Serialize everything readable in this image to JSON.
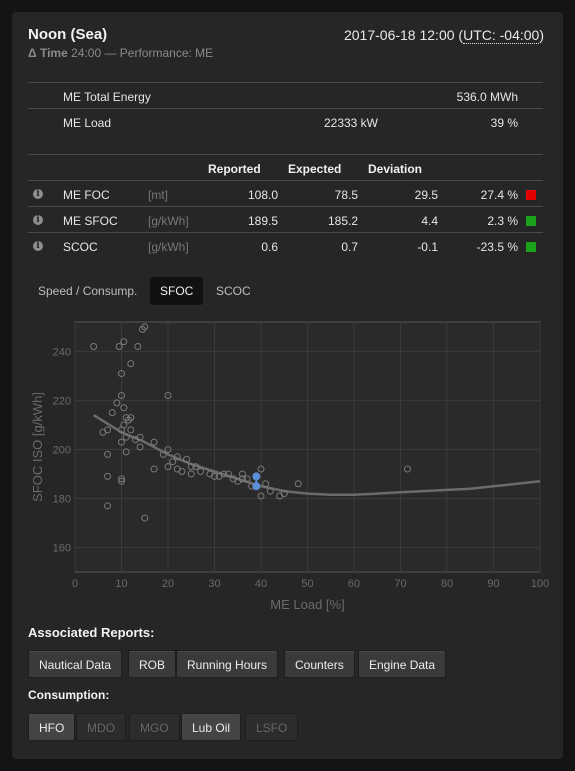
{
  "header": {
    "title": "Noon (Sea)",
    "datetime_prefix": "2017-06-18 12:00 (",
    "datetime_tz": "UTC: -04:00",
    "datetime_suffix": ")",
    "delta_label": "Δ Time",
    "delta_value": "24:00 — Performance: ME"
  },
  "summary": [
    {
      "label": "ME Total Energy",
      "mid": "",
      "value": "536.0 MWh"
    },
    {
      "label": "ME Load",
      "mid": "22333 kW",
      "value": "39 %"
    }
  ],
  "perf_table": {
    "headers": [
      "Reported",
      "Expected",
      "Deviation"
    ],
    "rows": [
      {
        "label": "ME FOC",
        "unit": "[mt]",
        "reported": "108.0",
        "expected": "78.5",
        "deviation": "29.5",
        "pct": "27.4 %",
        "status_color": "#e00000"
      },
      {
        "label": "ME SFOC",
        "unit": "[g/kWh]",
        "reported": "189.5",
        "expected": "185.2",
        "deviation": "4.4",
        "pct": "2.3 %",
        "status_color": "#1aa31a"
      },
      {
        "label": "SCOC",
        "unit": "[g/kWh]",
        "reported": "0.6",
        "expected": "0.7",
        "deviation": "-0.1",
        "pct": "-23.5 %",
        "status_color": "#1aa31a"
      }
    ]
  },
  "tabs": {
    "items": [
      "Speed / Consump.",
      "SFOC",
      "SCOC"
    ],
    "active_index": 1
  },
  "chart_data": {
    "type": "scatter",
    "title": "",
    "xlabel": "ME Load [%]",
    "ylabel": "SFOC ISO [g/kWh]",
    "xlim": [
      0,
      100
    ],
    "ylim": [
      150,
      252
    ],
    "xticks": [
      0,
      10,
      20,
      30,
      40,
      50,
      60,
      70,
      80,
      90,
      100
    ],
    "yticks": [
      160,
      180,
      200,
      220,
      240
    ],
    "grid": true,
    "points": [
      [
        4,
        242
      ],
      [
        9.5,
        242
      ],
      [
        10.5,
        244
      ],
      [
        13.5,
        242
      ],
      [
        14.5,
        249
      ],
      [
        15,
        250
      ],
      [
        12,
        235
      ],
      [
        10,
        231
      ],
      [
        20,
        222
      ],
      [
        10,
        222
      ],
      [
        9,
        219
      ],
      [
        10.5,
        217
      ],
      [
        8,
        215
      ],
      [
        11,
        213
      ],
      [
        11.5,
        212
      ],
      [
        12,
        213
      ],
      [
        10.5,
        210
      ],
      [
        7,
        208
      ],
      [
        10,
        208
      ],
      [
        12,
        208
      ],
      [
        11,
        205
      ],
      [
        6,
        207
      ],
      [
        14,
        205
      ],
      [
        13,
        204
      ],
      [
        10,
        203
      ],
      [
        17,
        203
      ],
      [
        14,
        201
      ],
      [
        20,
        200
      ],
      [
        11,
        199
      ],
      [
        7,
        198
      ],
      [
        19,
        198
      ],
      [
        22,
        197
      ],
      [
        21,
        195
      ],
      [
        24,
        196
      ],
      [
        20,
        193
      ],
      [
        22,
        192
      ],
      [
        25,
        193
      ],
      [
        26,
        193
      ],
      [
        17,
        192
      ],
      [
        23,
        191
      ],
      [
        25,
        190
      ],
      [
        27,
        191
      ],
      [
        29,
        190
      ],
      [
        30,
        189
      ],
      [
        31,
        189
      ],
      [
        32,
        190
      ],
      [
        33,
        190
      ],
      [
        34,
        188
      ],
      [
        35,
        187
      ],
      [
        36,
        188
      ],
      [
        37,
        188
      ],
      [
        36,
        190
      ],
      [
        38,
        185
      ],
      [
        40,
        192
      ],
      [
        41,
        186
      ],
      [
        42,
        183
      ],
      [
        44,
        181
      ],
      [
        45,
        182
      ],
      [
        48,
        186
      ],
      [
        71.5,
        192
      ],
      [
        7,
        189
      ],
      [
        10,
        188
      ],
      [
        10,
        187
      ],
      [
        7,
        177
      ],
      [
        15,
        172
      ],
      [
        40,
        181
      ]
    ],
    "highlight_points": [
      [
        39,
        189
      ],
      [
        39,
        185
      ]
    ],
    "curve": [
      [
        4,
        214
      ],
      [
        10,
        207
      ],
      [
        15,
        203
      ],
      [
        20,
        198
      ],
      [
        25,
        194
      ],
      [
        30,
        191
      ],
      [
        35,
        188
      ],
      [
        40,
        185
      ],
      [
        45,
        183
      ],
      [
        50,
        182
      ],
      [
        55,
        181.5
      ],
      [
        60,
        181.5
      ],
      [
        65,
        182
      ],
      [
        70,
        182.5
      ],
      [
        75,
        183
      ],
      [
        80,
        183.5
      ],
      [
        85,
        184
      ],
      [
        90,
        185
      ],
      [
        95,
        186
      ],
      [
        100,
        187
      ]
    ],
    "colors": {
      "points": "#7a7a7a",
      "highlight": "#5b8fd9",
      "curve": "#6b6b6b",
      "grid": "#3a3a3a",
      "axis_text": "#6a6a6a"
    }
  },
  "reports": {
    "title": "Associated Reports:",
    "buttons": [
      "Nautical Data",
      "ROB",
      "Running Hours",
      "Counters",
      "Engine Data"
    ]
  },
  "consumption": {
    "title": "Consumption:",
    "buttons": [
      {
        "label": "HFO",
        "enabled": true
      },
      {
        "label": "MDO",
        "enabled": false
      },
      {
        "label": "MGO",
        "enabled": false
      },
      {
        "label": "Lub Oil",
        "enabled": true
      },
      {
        "label": "LSFO",
        "enabled": false
      }
    ]
  }
}
